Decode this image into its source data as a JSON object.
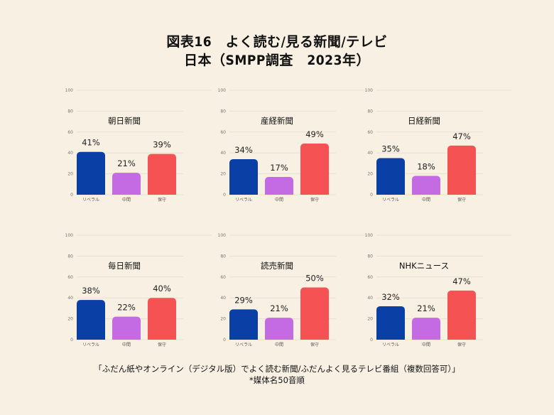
{
  "title_line1": "図表16　よく読む/見る新聞/テレビ",
  "title_line2": "日本（SMPP調査　2023年）",
  "footnote_line1": "「ふだん紙やオンライン（デジタル版）でよく読む新聞/ふだんよく見るテレビ番組（複数回答可）」",
  "footnote_line2": "*媒体名50音順",
  "colors": {
    "liberal": "#0a3fa6",
    "middle": "#c46be3",
    "conservative": "#f55353",
    "background": "#f8f0e2"
  },
  "chart_data": [
    {
      "type": "bar",
      "title": "朝日新聞",
      "categories": [
        "リベラル",
        "中間",
        "保守"
      ],
      "values": [
        41,
        21,
        39
      ],
      "value_labels": [
        "41%",
        "21%",
        "39%"
      ],
      "ylim": [
        0,
        100
      ],
      "yticks": [
        "0",
        "20",
        "40",
        "60",
        "80",
        "100"
      ],
      "grid": true
    },
    {
      "type": "bar",
      "title": "産経新聞",
      "categories": [
        "リベラル",
        "中間",
        "保守"
      ],
      "values": [
        34,
        17,
        49
      ],
      "value_labels": [
        "34%",
        "17%",
        "49%"
      ],
      "ylim": [
        0,
        100
      ],
      "yticks": [
        "0",
        "20",
        "40",
        "60",
        "80",
        "100"
      ],
      "grid": true
    },
    {
      "type": "bar",
      "title": "日経新聞",
      "categories": [
        "リベラル",
        "中間",
        "保守"
      ],
      "values": [
        35,
        18,
        47
      ],
      "value_labels": [
        "35%",
        "18%",
        "47%"
      ],
      "ylim": [
        0,
        100
      ],
      "yticks": [
        "0",
        "20",
        "40",
        "60",
        "80",
        "100"
      ],
      "grid": true
    },
    {
      "type": "bar",
      "title": "毎日新聞",
      "categories": [
        "リベラル",
        "中間",
        "保守"
      ],
      "values": [
        38,
        22,
        40
      ],
      "value_labels": [
        "38%",
        "22%",
        "40%"
      ],
      "ylim": [
        0,
        100
      ],
      "yticks": [
        "0",
        "20",
        "40",
        "60",
        "80",
        "100"
      ],
      "grid": true
    },
    {
      "type": "bar",
      "title": "読売新聞",
      "categories": [
        "リベラル",
        "中間",
        "保守"
      ],
      "values": [
        29,
        21,
        50
      ],
      "value_labels": [
        "29%",
        "21%",
        "50%"
      ],
      "ylim": [
        0,
        100
      ],
      "yticks": [
        "0",
        "20",
        "40",
        "60",
        "80",
        "100"
      ],
      "grid": true
    },
    {
      "type": "bar",
      "title": "NHKニュース",
      "categories": [
        "リベラル",
        "中間",
        "保守"
      ],
      "values": [
        32,
        21,
        47
      ],
      "value_labels": [
        "32%",
        "21%",
        "47%"
      ],
      "ylim": [
        0,
        100
      ],
      "yticks": [
        "0",
        "20",
        "40",
        "60",
        "80",
        "100"
      ],
      "grid": true
    }
  ]
}
